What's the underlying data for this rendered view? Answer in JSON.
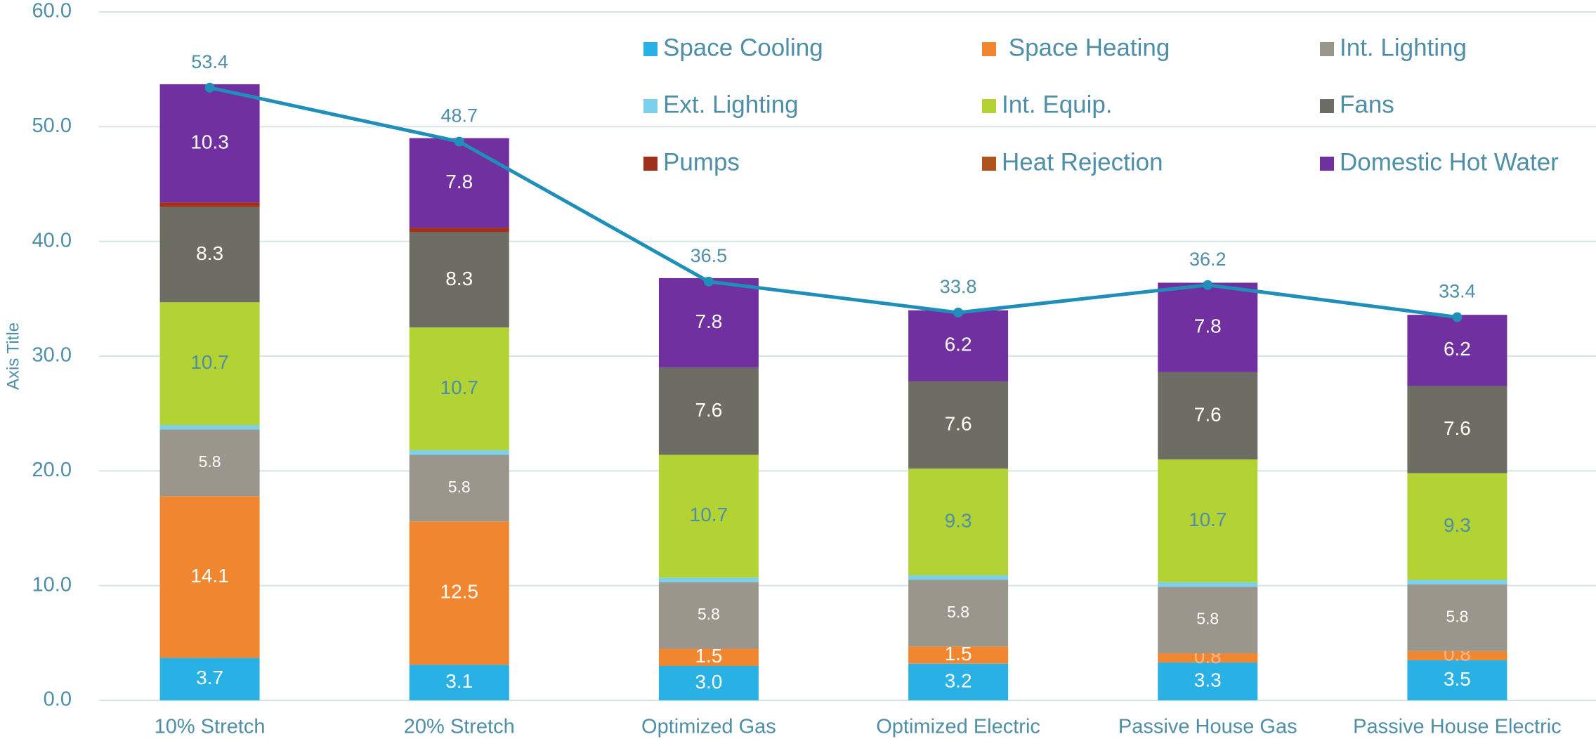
{
  "chart_data": {
    "type": "stacked_bar_line",
    "y_axis_label": "Axis Title",
    "categories": [
      "10% Stretch",
      "20% Stretch",
      "Optimized Gas",
      "Optimized Electric",
      "Passive House Gas",
      "Passive House Electric"
    ],
    "ylim": [
      0,
      60
    ],
    "yticks": [
      {
        "value": 0,
        "label": "0.0"
      },
      {
        "value": 10,
        "label": "10.0"
      },
      {
        "value": 20,
        "label": "20.0"
      },
      {
        "value": 30,
        "label": "30.0"
      },
      {
        "value": 40,
        "label": "40.0"
      },
      {
        "value": 50,
        "label": "50.0"
      },
      {
        "value": 60,
        "label": "60.0"
      }
    ],
    "grid": true,
    "legend": "top-right",
    "series": [
      {
        "name": "Space Cooling",
        "color": "#29b1e5",
        "values": [
          3.7,
          3.1,
          3.0,
          3.2,
          3.3,
          3.5
        ],
        "value_labels": [
          "3.7",
          "3.1",
          "3.0",
          "3.2",
          "3.3",
          "3.5"
        ]
      },
      {
        "name": " Space Heating",
        "color": "#f08730",
        "values": [
          14.1,
          12.5,
          1.5,
          1.5,
          0.8,
          0.8
        ],
        "value_labels": [
          "14.1",
          "12.5",
          "1.5",
          "1.5",
          "0.8",
          "0.8"
        ]
      },
      {
        "name": "Int. Lighting",
        "color": "#9a968c",
        "values": [
          5.8,
          5.8,
          5.8,
          5.8,
          5.8,
          5.8
        ],
        "value_labels": [
          "5.8",
          "5.8",
          "5.8",
          "5.8",
          "5.8",
          "5.8"
        ]
      },
      {
        "name": "Ext. Lighting",
        "color": "#7dd0ec",
        "values": [
          0.4,
          0.4,
          0.4,
          0.4,
          0.4,
          0.4
        ]
      },
      {
        "name": "Int. Equip.",
        "color": "#b3d335",
        "values": [
          10.7,
          10.7,
          10.7,
          9.3,
          10.7,
          9.3
        ],
        "value_labels": [
          "10.7",
          "10.7",
          "10.7",
          "9.3",
          "10.7",
          "9.3"
        ]
      },
      {
        "name": "Fans",
        "color": "#6d6d63",
        "values": [
          8.3,
          8.3,
          7.6,
          7.6,
          7.6,
          7.6
        ],
        "value_labels": [
          "8.3",
          "8.3",
          "7.6",
          "7.6",
          "7.6",
          "7.6"
        ]
      },
      {
        "name": "Pumps",
        "color": "#a0301c",
        "values": [
          0.4,
          0.4,
          0,
          0,
          0,
          0
        ]
      },
      {
        "name": "Heat Rejection",
        "color": "#b0521c",
        "values": [
          0,
          0,
          0,
          0,
          0,
          0
        ]
      },
      {
        "name": "Domestic Hot Water",
        "color": "#7030a0",
        "values": [
          10.3,
          7.8,
          7.8,
          6.2,
          7.8,
          6.2
        ],
        "value_labels": [
          "10.3",
          "7.8",
          "7.8",
          "6.2",
          "7.8",
          "6.2"
        ]
      }
    ],
    "line": {
      "color": "#1f8fba",
      "values": [
        53.4,
        48.7,
        36.5,
        33.8,
        36.2,
        33.4
      ]
    }
  }
}
